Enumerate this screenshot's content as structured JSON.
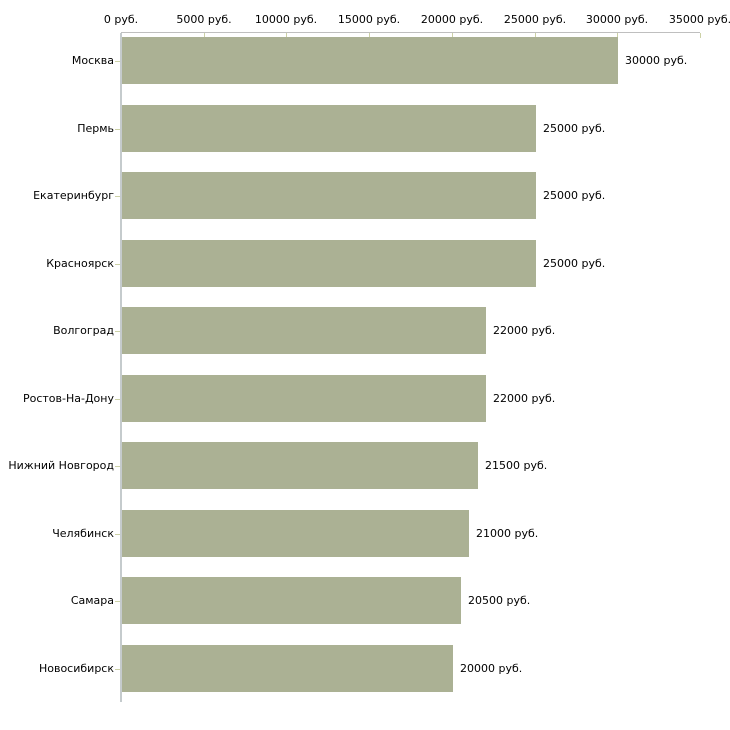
{
  "chart_data": {
    "type": "bar",
    "orientation": "horizontal",
    "title": "",
    "unit": "руб.",
    "categories": [
      "Москва",
      "Пермь",
      "Екатеринбург",
      "Красноярск",
      "Волгоград",
      "Ростов-На-Дону",
      "Нижний Новгород",
      "Челябинск",
      "Самара",
      "Новосибирск"
    ],
    "values": [
      30000,
      25000,
      25000,
      25000,
      22000,
      22000,
      21500,
      21000,
      20500,
      20000
    ],
    "value_labels": [
      "30000 руб.",
      "25000 руб.",
      "25000 руб.",
      "25000 руб.",
      "22000 руб.",
      "22000 руб.",
      "21500 руб.",
      "21000 руб.",
      "20500 руб.",
      "20000 руб."
    ],
    "x_axis": {
      "position": "top",
      "min": 0,
      "max": 35000,
      "ticks": [
        0,
        5000,
        10000,
        15000,
        20000,
        25000,
        30000,
        35000
      ],
      "tick_labels": [
        "0 руб.",
        "5000 руб.",
        "10000 руб.",
        "15000 руб.",
        "20000 руб.",
        "25000 руб.",
        "30000 руб.",
        "35000 руб."
      ]
    },
    "legend": null,
    "grid": false,
    "colors": {
      "bar": "#abb194",
      "axis_line": "#bfbfbf",
      "y_axis_line": "#c5cbcd",
      "tick_mark": "#ccd1a6",
      "text": "#000000",
      "background": "#ffffff"
    }
  }
}
